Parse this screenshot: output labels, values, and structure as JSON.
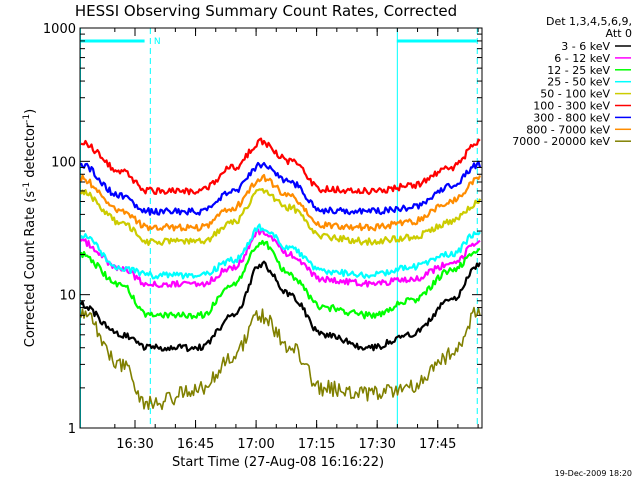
{
  "chart_data": {
    "type": "line",
    "title": "HESSI Observing Summary Count Rates, Corrected",
    "xlabel": "Start Time (27-Aug-08 16:16:22)",
    "ylabel": "Corrected Count Rate (s",
    "ylabel_sup1": "-1",
    "ylabel_mid": " detector",
    "ylabel_sup2": "-1",
    "ylabel_end": ")",
    "yscale": "log",
    "ylim": [
      1,
      1000
    ],
    "xlim_minutes": [
      0,
      99.6
    ],
    "x_ticks": [
      "16:30",
      "16:45",
      "17:00",
      "17:15",
      "17:30",
      "17:45"
    ],
    "x_tick_minutes": [
      13.63,
      28.63,
      43.63,
      58.63,
      73.63,
      88.63
    ],
    "y_ticks": [
      "1",
      "10",
      "100",
      "1000"
    ],
    "y_tick_values": [
      1,
      10,
      100,
      1000
    ],
    "legend_header": [
      "Det 1,3,4,5,6,9,",
      "Att 0"
    ],
    "series": [
      {
        "name": "3 - 6 keV",
        "color": "#000000",
        "x_minutes": [
          0,
          10,
          17,
          30,
          38,
          45,
          52,
          60,
          72,
          82,
          92,
          99
        ],
        "values": [
          8.5,
          5,
          4,
          4,
          7,
          17,
          10,
          5,
          4,
          5,
          9,
          17
        ]
      },
      {
        "name": "6 - 12 keV",
        "color": "#ff00ff",
        "x_minutes": [
          0,
          10,
          17,
          30,
          38,
          45,
          52,
          60,
          72,
          82,
          92,
          99
        ],
        "values": [
          25,
          16,
          12,
          12,
          16,
          30,
          20,
          13,
          12,
          13,
          17,
          25
        ]
      },
      {
        "name": "12 - 25 keV",
        "color": "#00ff00",
        "x_minutes": [
          0,
          10,
          17,
          30,
          38,
          45,
          52,
          60,
          72,
          82,
          92,
          99
        ],
        "values": [
          20,
          12,
          7,
          7,
          12,
          25,
          14,
          8,
          7,
          9,
          15,
          22
        ]
      },
      {
        "name": "25 - 50 keV",
        "color": "#00ffff",
        "x_minutes": [
          0,
          10,
          17,
          30,
          38,
          45,
          52,
          60,
          72,
          82,
          92,
          99
        ],
        "values": [
          28,
          16,
          14,
          14,
          18,
          32,
          22,
          15,
          14,
          16,
          20,
          30
        ]
      },
      {
        "name": "50 - 100 keV",
        "color": "#cccc00",
        "x_minutes": [
          0,
          10,
          17,
          30,
          38,
          45,
          52,
          60,
          72,
          82,
          92,
          99
        ],
        "values": [
          60,
          35,
          25,
          25,
          35,
          60,
          45,
          27,
          25,
          27,
          35,
          50
        ]
      },
      {
        "name": "100 - 300 keV",
        "color": "#ff0000",
        "x_minutes": [
          0,
          10,
          17,
          30,
          38,
          45,
          52,
          60,
          72,
          82,
          92,
          99
        ],
        "values": [
          140,
          85,
          60,
          60,
          90,
          140,
          100,
          62,
          60,
          65,
          90,
          140
        ]
      },
      {
        "name": "300 - 800 keV",
        "color": "#0000ff",
        "x_minutes": [
          0,
          10,
          17,
          30,
          38,
          45,
          52,
          60,
          72,
          82,
          92,
          99
        ],
        "values": [
          95,
          55,
          42,
          42,
          60,
          95,
          70,
          43,
          42,
          45,
          65,
          95
        ]
      },
      {
        "name": "800 - 7000 keV",
        "color": "#ff8c00",
        "x_minutes": [
          0,
          10,
          17,
          30,
          38,
          45,
          52,
          60,
          72,
          82,
          92,
          99
        ],
        "values": [
          75,
          42,
          32,
          32,
          45,
          75,
          55,
          33,
          32,
          35,
          50,
          75
        ]
      },
      {
        "name": "7000 - 20000 keV",
        "color": "#808000",
        "x_minutes": [
          0,
          10,
          17,
          30,
          38,
          45,
          52,
          60,
          72,
          82,
          92,
          99
        ],
        "values": [
          7.5,
          3,
          1.5,
          2,
          3.5,
          7,
          4,
          2,
          1.8,
          2,
          3.5,
          7.5
        ]
      }
    ],
    "markers": [
      {
        "type": "solid-vertical",
        "color": "#00ffff",
        "x_minutes": 0
      },
      {
        "type": "dashed-vertical",
        "color": "#00ffff",
        "x_minutes": 17.3,
        "label": "N"
      },
      {
        "type": "solid-vertical",
        "color": "#00ffff",
        "x_minutes": 78.5
      },
      {
        "type": "dashed-vertical",
        "color": "#00ffff",
        "x_minutes": 98.3
      }
    ],
    "top_bars": [
      {
        "color": "#00ffff",
        "x_minutes": [
          0,
          16
        ]
      },
      {
        "color": "#00ffff",
        "x_minutes": [
          78.5,
          98.3
        ]
      }
    ],
    "grid": false,
    "legend_position": "right"
  },
  "footer": {
    "timestamp": "19-Dec-2009 18:20"
  }
}
